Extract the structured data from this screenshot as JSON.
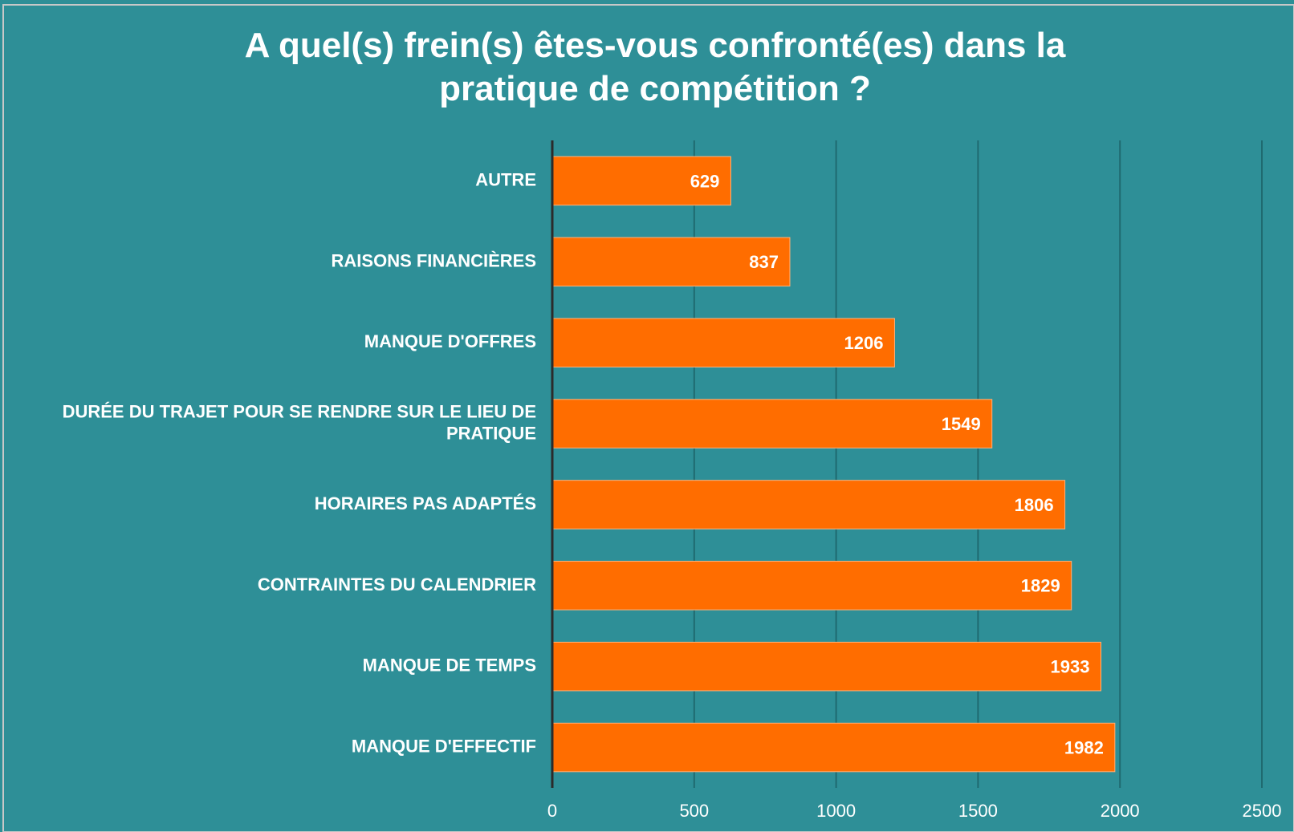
{
  "chart_data": {
    "type": "bar",
    "orientation": "horizontal",
    "title": "A quel(s) frein(s) êtes-vous confronté(es) dans la pratique de compétition ?",
    "categories": [
      "AUTRE",
      "RAISONS FINANCIÈRES",
      "MANQUE D'OFFRES",
      "DURÉE DU TRAJET POUR SE RENDRE SUR LE LIEU DE PRATIQUE",
      "HORAIRES PAS ADAPTÉS",
      "CONTRAINTES DU CALENDRIER",
      "MANQUE DE TEMPS",
      "MANQUE D'EFFECTIF"
    ],
    "values": [
      629,
      837,
      1206,
      1549,
      1806,
      1829,
      1933,
      1982
    ],
    "color": "#ff6d00",
    "xlim": [
      0,
      2500
    ],
    "xticks": [
      0,
      500,
      1000,
      1500,
      2000,
      2500
    ],
    "grid": true
  }
}
